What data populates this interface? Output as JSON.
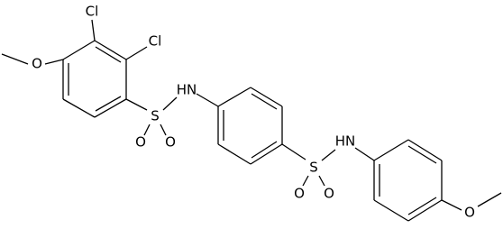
{
  "atoms": [
    {
      "label": "Cl"
    },
    {
      "label": "Cl"
    },
    {
      "label": "O"
    },
    {
      "label": "S"
    },
    {
      "label": "O"
    },
    {
      "label": "O"
    },
    {
      "label": "HN"
    },
    {
      "label": "S"
    },
    {
      "label": "O"
    },
    {
      "label": "O"
    },
    {
      "label": "HN"
    },
    {
      "label": "O"
    }
  ]
}
